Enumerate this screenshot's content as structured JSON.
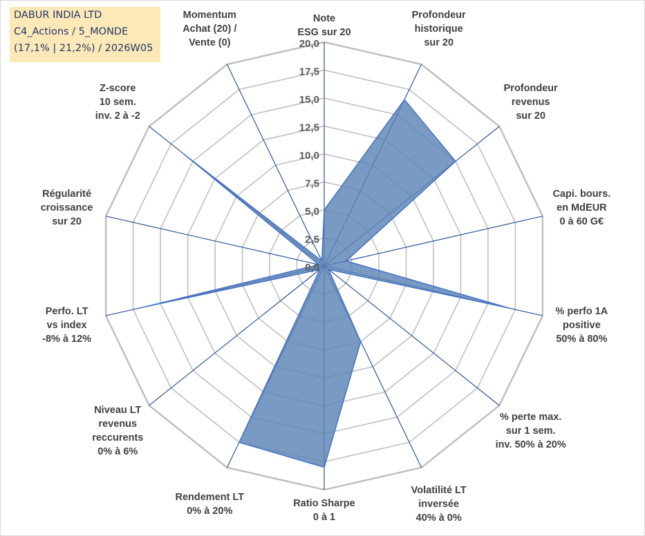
{
  "info_box": {
    "line1": "DABUR INDIA LTD",
    "line2": "C4_Actions / 5_MONDE",
    "line3": "(17,1% | 21,2%) / 2026W05"
  },
  "colors": {
    "fill": "#5b84b6",
    "series_line": "#4472c4",
    "spoke": "#2f5597",
    "grid": "#bfbfbf",
    "info_bg": "#fde9b8"
  },
  "chart_data": {
    "type": "radar",
    "rmin": 0,
    "rmax": 20,
    "tick_step": 2.5,
    "tick_labels": [
      "0,0",
      "2,5",
      "5,0",
      "7,5",
      "10,0",
      "12,5",
      "15,0",
      "17,5",
      "20,0"
    ],
    "axes": [
      {
        "lines": [
          "Note",
          "ESG sur 20"
        ]
      },
      {
        "lines": [
          "Profondeur",
          "historique",
          "sur 20"
        ]
      },
      {
        "lines": [
          "Profondeur",
          "revenus",
          "sur 20"
        ]
      },
      {
        "lines": [
          "Capi. bours.",
          "en MdEUR",
          "0 à 60 G€"
        ]
      },
      {
        "lines": [
          "% perfo 1A",
          "positive",
          "50% à 80%"
        ]
      },
      {
        "lines": [
          "% perte max.",
          "sur 1 sem.",
          "inv. 50% à 20%"
        ]
      },
      {
        "lines": [
          "Volatilité LT",
          "inversée",
          "40% à 0%"
        ]
      },
      {
        "lines": [
          "Ratio Sharpe",
          "0 à 1"
        ]
      },
      {
        "lines": [
          "Rendement LT",
          "0% à 20%"
        ]
      },
      {
        "lines": [
          "Niveau LT",
          "revenus",
          "reccurents",
          "0% à 6%"
        ]
      },
      {
        "lines": [
          "Perfo. LT",
          "vs index",
          "-8% à 12%"
        ]
      },
      {
        "lines": [
          "Régularité",
          "croissance",
          "sur 20"
        ]
      },
      {
        "lines": [
          "Z-score",
          "10 sem.",
          "inv. 2 à -2"
        ]
      },
      {
        "lines": [
          "Momentum",
          "Achat (20) /",
          "Vente (0)"
        ]
      }
    ],
    "series": [
      {
        "values": [
          5.0,
          16.5,
          15.0,
          2.0,
          17.0,
          0.5,
          7.5,
          18.0,
          17.5,
          0.5,
          16.5,
          0.5,
          16.0,
          0.5
        ]
      }
    ],
    "grid": true,
    "legend": "none"
  }
}
